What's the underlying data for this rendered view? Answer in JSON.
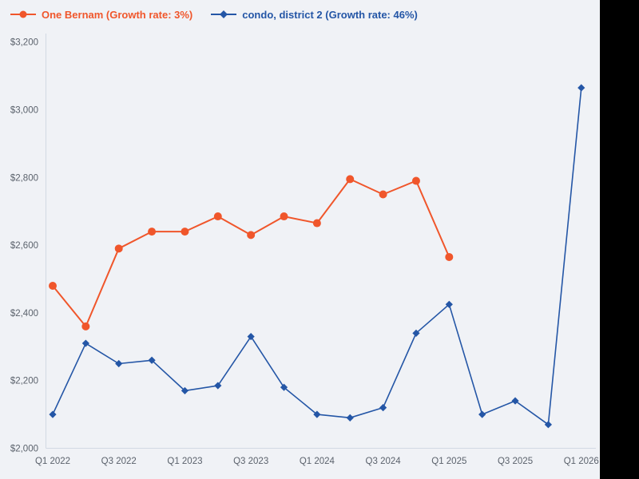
{
  "page": {
    "background": "#f0f2f6",
    "right_strip_color": "#000000"
  },
  "axis": {
    "line_color": "#d2d9e3",
    "tick_label_color": "#5b626c",
    "tick_font_size": 11.5
  },
  "chart_data": {
    "type": "line",
    "x": [
      "Q1 2022",
      "Q2 2022",
      "Q3 2022",
      "Q4 2022",
      "Q1 2023",
      "Q2 2023",
      "Q3 2023",
      "Q4 2023",
      "Q1 2024",
      "Q2 2024",
      "Q3 2024",
      "Q4 2024",
      "Q1 2025",
      "Q2 2025",
      "Q3 2025",
      "Q4 2025",
      "Q1 2026"
    ],
    "x_ticks_shown": [
      "Q1 2022",
      "Q3 2022",
      "Q1 2023",
      "Q3 2023",
      "Q1 2024",
      "Q3 2024",
      "Q1 2025",
      "Q3 2025",
      "Q1 2026"
    ],
    "y_ticks": [
      2000,
      2200,
      2400,
      2600,
      2800,
      3000,
      3200
    ],
    "y_tick_labels": [
      "$2,000",
      "$2,200",
      "$2,400",
      "$2,600",
      "$2,800",
      "$3,000",
      "$3,200"
    ],
    "ylim": [
      2000,
      3200
    ],
    "grid": false,
    "legend_position": "top-left",
    "series": [
      {
        "name": "One Bernam (Growth rate: 3%)",
        "color": "#f0562b",
        "marker": "circle",
        "line_width": 2,
        "values": [
          2480,
          2360,
          2590,
          2640,
          2640,
          2685,
          2630,
          2685,
          2665,
          2795,
          2750,
          2790,
          2565,
          null,
          null,
          null,
          null
        ]
      },
      {
        "name": "condo, district 2 (Growth rate: 46%)",
        "color": "#2456a6",
        "marker": "diamond",
        "line_width": 1.6,
        "values": [
          2100,
          2310,
          2250,
          2260,
          2170,
          2185,
          2330,
          2180,
          2100,
          2090,
          2120,
          2340,
          2425,
          2100,
          2140,
          2070,
          3065
        ]
      }
    ]
  }
}
